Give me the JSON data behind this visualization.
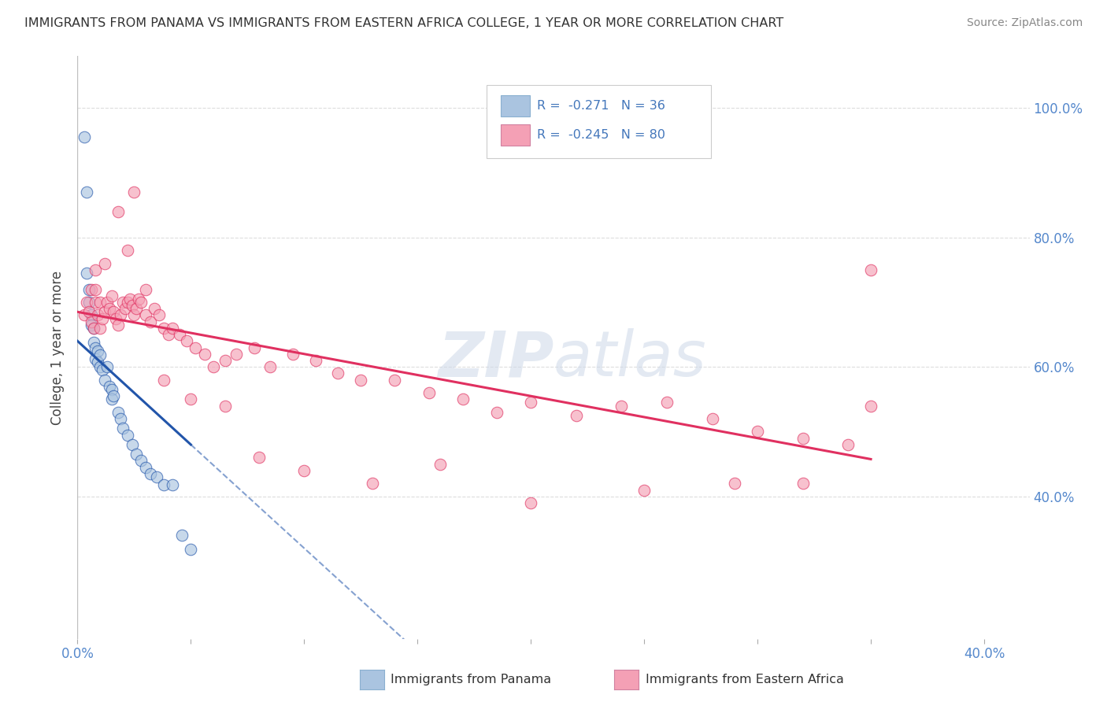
{
  "title": "IMMIGRANTS FROM PANAMA VS IMMIGRANTS FROM EASTERN AFRICA COLLEGE, 1 YEAR OR MORE CORRELATION CHART",
  "source": "Source: ZipAtlas.com",
  "ylabel": "College, 1 year or more",
  "legend_label_1": "Immigrants from Panama",
  "legend_label_2": "Immigrants from Eastern Africa",
  "r1": "-0.271",
  "n1": "36",
  "r2": "-0.245",
  "n2": "80",
  "color_panama": "#aac4e0",
  "color_ea": "#f4a0b5",
  "line_color_panama": "#2255aa",
  "line_color_ea": "#e03060",
  "xlim": [
    0.0,
    0.42
  ],
  "ylim": [
    0.18,
    1.08
  ],
  "yticks": [
    0.4,
    0.6,
    0.8,
    1.0
  ],
  "ytick_labels": [
    "40.0%",
    "60.0%",
    "80.0%",
    "100.0%"
  ],
  "xtick_vals": [
    0.0,
    0.05,
    0.1,
    0.15,
    0.2,
    0.25,
    0.3,
    0.35,
    0.4
  ],
  "xtick_labels": [
    "0.0%",
    "",
    "",
    "",
    "",
    "",
    "",
    "",
    "40.0%"
  ],
  "watermark": "ZIPatlas",
  "panama_x": [
    0.003,
    0.004,
    0.004,
    0.005,
    0.005,
    0.006,
    0.006,
    0.007,
    0.007,
    0.008,
    0.008,
    0.009,
    0.009,
    0.01,
    0.01,
    0.011,
    0.012,
    0.013,
    0.014,
    0.015,
    0.015,
    0.016,
    0.018,
    0.019,
    0.02,
    0.022,
    0.024,
    0.026,
    0.028,
    0.03,
    0.032,
    0.035,
    0.038,
    0.042,
    0.046,
    0.05
  ],
  "panama_y": [
    0.955,
    0.87,
    0.745,
    0.72,
    0.7,
    0.68,
    0.665,
    0.66,
    0.638,
    0.63,
    0.612,
    0.625,
    0.608,
    0.6,
    0.618,
    0.595,
    0.58,
    0.6,
    0.57,
    0.565,
    0.55,
    0.555,
    0.53,
    0.52,
    0.505,
    0.495,
    0.48,
    0.465,
    0.455,
    0.445,
    0.435,
    0.43,
    0.418,
    0.418,
    0.34,
    0.318
  ],
  "ea_x": [
    0.003,
    0.004,
    0.005,
    0.006,
    0.006,
    0.007,
    0.008,
    0.008,
    0.009,
    0.01,
    0.01,
    0.011,
    0.012,
    0.013,
    0.014,
    0.015,
    0.016,
    0.017,
    0.018,
    0.019,
    0.02,
    0.021,
    0.022,
    0.023,
    0.024,
    0.025,
    0.026,
    0.027,
    0.028,
    0.03,
    0.032,
    0.034,
    0.036,
    0.038,
    0.04,
    0.042,
    0.045,
    0.048,
    0.052,
    0.056,
    0.06,
    0.065,
    0.07,
    0.078,
    0.085,
    0.095,
    0.105,
    0.115,
    0.125,
    0.14,
    0.155,
    0.17,
    0.185,
    0.2,
    0.22,
    0.24,
    0.26,
    0.28,
    0.3,
    0.32,
    0.34,
    0.008,
    0.012,
    0.018,
    0.022,
    0.025,
    0.03,
    0.038,
    0.05,
    0.065,
    0.08,
    0.1,
    0.13,
    0.16,
    0.2,
    0.25,
    0.29,
    0.32,
    0.35,
    0.35
  ],
  "ea_y": [
    0.68,
    0.7,
    0.685,
    0.67,
    0.72,
    0.66,
    0.7,
    0.72,
    0.68,
    0.66,
    0.7,
    0.675,
    0.685,
    0.7,
    0.69,
    0.71,
    0.685,
    0.675,
    0.665,
    0.68,
    0.7,
    0.69,
    0.7,
    0.705,
    0.695,
    0.68,
    0.69,
    0.705,
    0.7,
    0.68,
    0.67,
    0.69,
    0.68,
    0.66,
    0.65,
    0.66,
    0.65,
    0.64,
    0.63,
    0.62,
    0.6,
    0.61,
    0.62,
    0.63,
    0.6,
    0.62,
    0.61,
    0.59,
    0.58,
    0.58,
    0.56,
    0.55,
    0.53,
    0.545,
    0.525,
    0.54,
    0.545,
    0.52,
    0.5,
    0.49,
    0.48,
    0.75,
    0.76,
    0.84,
    0.78,
    0.87,
    0.72,
    0.58,
    0.55,
    0.54,
    0.46,
    0.44,
    0.42,
    0.45,
    0.39,
    0.41,
    0.42,
    0.42,
    0.75,
    0.54
  ],
  "background_color": "#ffffff",
  "grid_color": "#dddddd",
  "panama_line_intercept": 0.64,
  "panama_line_slope": -3.2,
  "ea_line_intercept": 0.685,
  "ea_line_slope": -0.65
}
